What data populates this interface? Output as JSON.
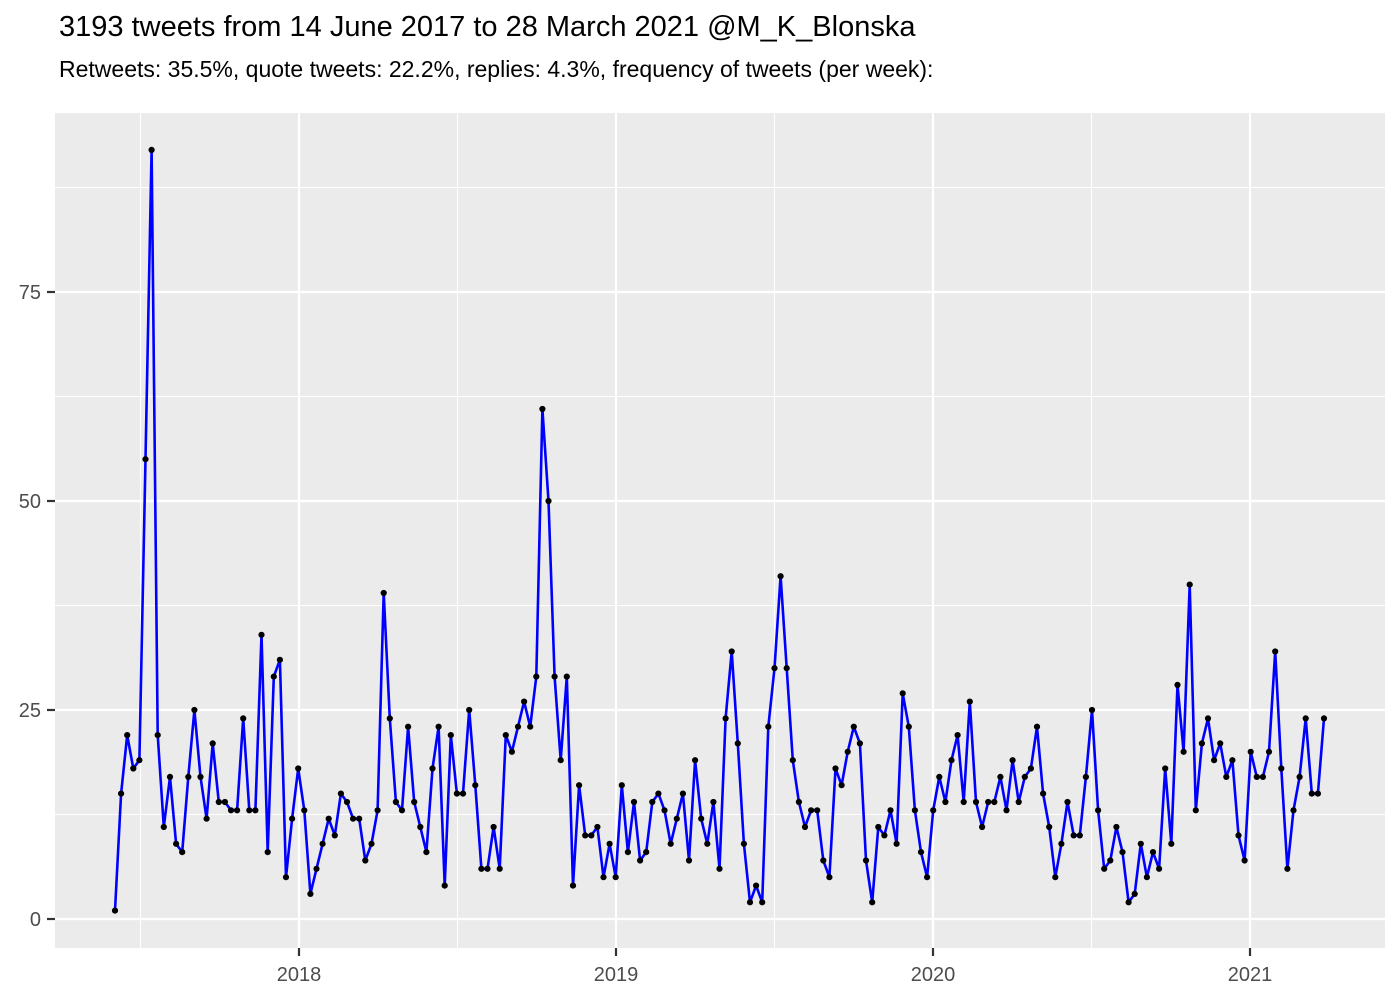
{
  "header": {
    "title": "3193 tweets from 14 June 2017 to 28 March 2021 @M_K_Blonska",
    "subtitle": "Retweets: 35.5%, quote tweets: 22.2%, replies: 4.3%, frequency of tweets (per week):"
  },
  "chart_data": {
    "type": "line",
    "title": "3193 tweets from 14 June 2017 to 28 March 2021 @M_K_Blonska",
    "subtitle": "Retweets: 35.5%, quote tweets: 22.2%, replies: 4.3%, frequency of tweets (per week):",
    "ylabel": "",
    "xlabel": "",
    "series_name": "tweets-per-week",
    "week_start_date": "2017-06-11",
    "week_step_days": 7,
    "week_end_date": "2021-03-28",
    "values": [
      1,
      15,
      22,
      18,
      19,
      55,
      92,
      22,
      11,
      17,
      9,
      8,
      17,
      25,
      17,
      12,
      21,
      14,
      14,
      13,
      13,
      24,
      13,
      13,
      34,
      8,
      29,
      31,
      5,
      12,
      18,
      13,
      3,
      6,
      9,
      12,
      10,
      15,
      14,
      12,
      12,
      7,
      9,
      13,
      39,
      24,
      14,
      13,
      23,
      14,
      11,
      8,
      18,
      23,
      4,
      22,
      15,
      15,
      25,
      16,
      6,
      6,
      11,
      6,
      22,
      20,
      23,
      26,
      23,
      29,
      61,
      50,
      29,
      19,
      29,
      4,
      16,
      10,
      10,
      11,
      5,
      9,
      5,
      16,
      8,
      14,
      7,
      8,
      14,
      15,
      13,
      9,
      12,
      15,
      7,
      19,
      12,
      9,
      14,
      6,
      24,
      32,
      21,
      9,
      2,
      4,
      2,
      23,
      30,
      41,
      30,
      19,
      14,
      11,
      13,
      13,
      7,
      5,
      18,
      16,
      20,
      23,
      21,
      7,
      2,
      11,
      10,
      13,
      9,
      27,
      23,
      13,
      8,
      5,
      13,
      17,
      14,
      19,
      22,
      14,
      26,
      14,
      11,
      14,
      14,
      17,
      13,
      19,
      14,
      17,
      18,
      23,
      15,
      11,
      5,
      9,
      14,
      10,
      10,
      17,
      25,
      13,
      6,
      7,
      11,
      8,
      2,
      3,
      9,
      5,
      8,
      6,
      18,
      9,
      28,
      20,
      40,
      13,
      21,
      24,
      19,
      21,
      17,
      19,
      10,
      7,
      20,
      17,
      17,
      20,
      32,
      18,
      6,
      13,
      17,
      24,
      15,
      15,
      24
    ],
    "x_ticks": [
      {
        "label": "2018"
      },
      {
        "label": "2019"
      },
      {
        "label": "2020"
      },
      {
        "label": "2021"
      }
    ],
    "y_ticks": [
      {
        "label": "0",
        "value": 0
      },
      {
        "label": "25",
        "value": 25
      },
      {
        "label": "50",
        "value": 50
      },
      {
        "label": "75",
        "value": 75
      }
    ],
    "ylim": [
      -3.5,
      96.4
    ],
    "grid": "white major and minor gridlines on gray panel, minor at 12.5 intervals and mid-years",
    "legend": "none",
    "colors": {
      "line": "#0000FF",
      "point": "#000000",
      "panel_background": "#EBEBEB",
      "gridline": "#FFFFFF",
      "axis_text": "#4D4D4D",
      "tick_mark": "#333333",
      "title_text": "#000000"
    }
  }
}
